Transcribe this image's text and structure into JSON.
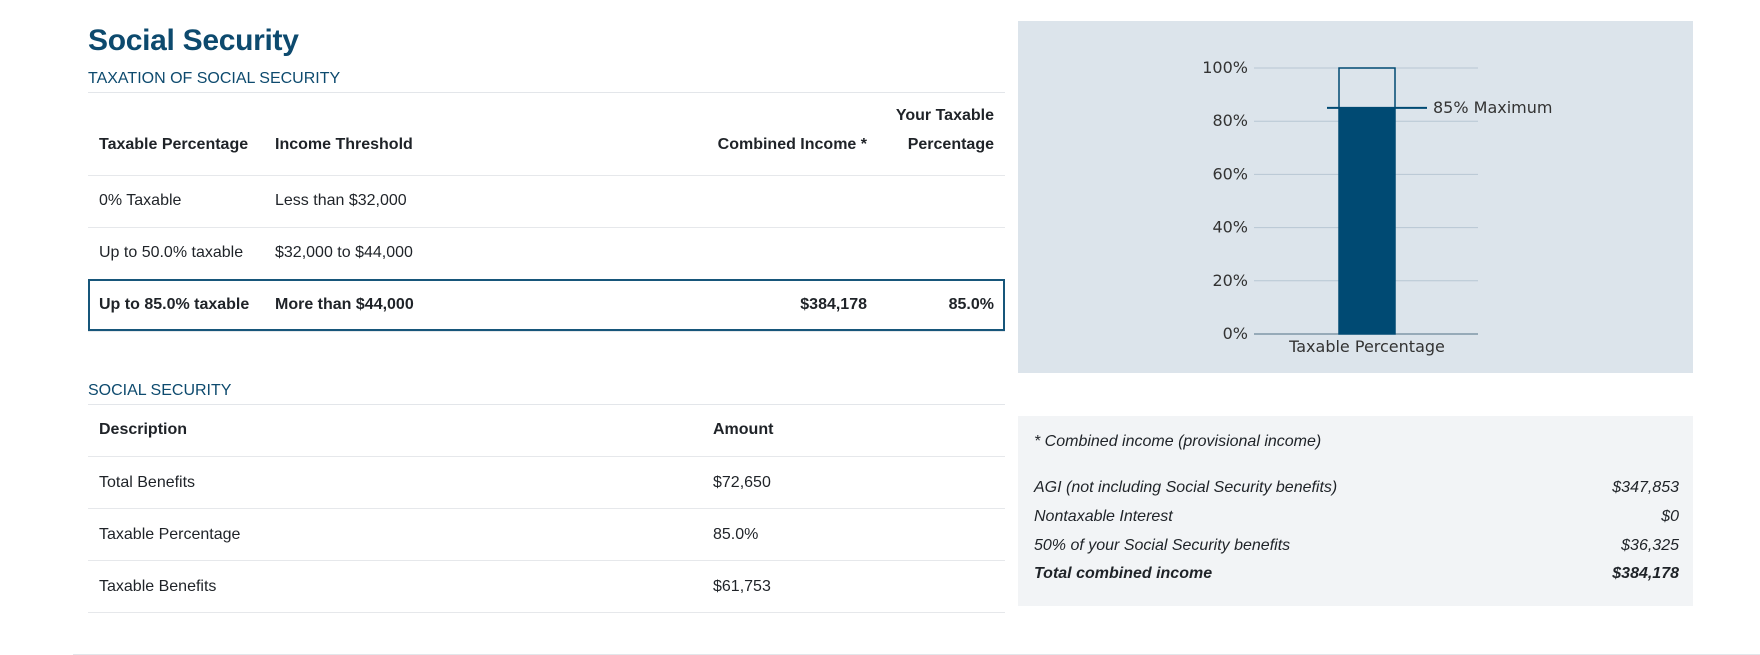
{
  "page_title": "Social Security",
  "taxation": {
    "section_label": "TAXATION OF SOCIAL SECURITY",
    "headers": {
      "taxable_percentage": "Taxable Percentage",
      "income_threshold": "Income Threshold",
      "combined_income": "Combined Income *",
      "your_taxable_line1": "Your Taxable",
      "your_taxable_line2": "Percentage"
    },
    "rows": [
      {
        "taxable": "0% Taxable",
        "threshold": "Less than $32,000",
        "combined": "",
        "yours": ""
      },
      {
        "taxable": "Up to 50.0% taxable",
        "threshold": "$32,000 to $44,000",
        "combined": "",
        "yours": ""
      },
      {
        "taxable": "Up to 85.0% taxable",
        "threshold": "More than $44,000",
        "combined": "$384,178",
        "yours": "85.0%"
      }
    ]
  },
  "social_security": {
    "section_label": "SOCIAL SECURITY",
    "headers": {
      "description": "Description",
      "amount": "Amount"
    },
    "rows": [
      {
        "description": "Total Benefits",
        "amount": "$72,650"
      },
      {
        "description": "Taxable Percentage",
        "amount": "85.0%"
      },
      {
        "description": "Taxable Benefits",
        "amount": "$61,753"
      }
    ]
  },
  "chart_data": {
    "type": "bar",
    "categories": [
      "Taxable Percentage"
    ],
    "values": [
      85
    ],
    "ymax_outline": 100,
    "ylim": [
      0,
      100
    ],
    "yticks": [
      "0%",
      "20%",
      "40%",
      "60%",
      "80%",
      "100%"
    ],
    "reference_line": {
      "value": 85,
      "label": "85% Maximum"
    },
    "colors": {
      "bar": "#004a73",
      "grid": "#b7c6d3",
      "panel": "#dce4eb"
    }
  },
  "combined_income": {
    "title": "* Combined income (provisional income)",
    "rows": [
      {
        "label": "AGI (not including Social Security benefits)",
        "value": "$347,853"
      },
      {
        "label": "Nontaxable Interest",
        "value": "$0"
      },
      {
        "label": "50% of your Social Security benefits",
        "value": "$36,325"
      }
    ],
    "total": {
      "label": "Total combined income",
      "value": "$384,178"
    }
  }
}
